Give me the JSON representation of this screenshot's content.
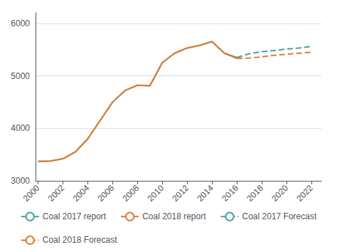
{
  "chart_data": {
    "type": "line",
    "series": [
      {
        "name": "Coal 2017 report",
        "color": "#4a9fa0",
        "line_style": "solid",
        "x": [
          2000,
          2001,
          2002,
          2003,
          2004,
          2005,
          2006,
          2007,
          2008,
          2009,
          2010,
          2011,
          2012,
          2013,
          2014,
          2015,
          2016
        ],
        "values": [
          3370,
          3375,
          3420,
          3550,
          3800,
          4150,
          4500,
          4720,
          4820,
          4810,
          5250,
          5430,
          5530,
          5580,
          5650,
          5430,
          5350
        ]
      },
      {
        "name": "Coal 2018 report",
        "color": "#e07a2f",
        "line_style": "solid",
        "x": [
          2000,
          2001,
          2002,
          2003,
          2004,
          2005,
          2006,
          2007,
          2008,
          2009,
          2010,
          2011,
          2012,
          2013,
          2014,
          2015,
          2016
        ],
        "values": [
          3370,
          3375,
          3420,
          3550,
          3800,
          4150,
          4500,
          4720,
          4820,
          4810,
          5250,
          5430,
          5530,
          5580,
          5650,
          5430,
          5330
        ]
      },
      {
        "name": "Coal 2017 Forecast",
        "color": "#4a9fa0",
        "line_style": "dashed",
        "x": [
          2016,
          2017,
          2018,
          2019,
          2020,
          2021,
          2022
        ],
        "values": [
          5350,
          5420,
          5460,
          5480,
          5510,
          5530,
          5560
        ]
      },
      {
        "name": "Coal 2018 Forecast",
        "color": "#e07a2f",
        "line_style": "dashed",
        "x": [
          2016,
          2017,
          2018,
          2019,
          2020,
          2021,
          2022
        ],
        "values": [
          5330,
          5340,
          5360,
          5390,
          5410,
          5430,
          5450
        ]
      }
    ],
    "xlim": [
      1999.8,
      2022.8
    ],
    "xticks": [
      2000,
      2002,
      2004,
      2006,
      2008,
      2010,
      2012,
      2014,
      2016,
      2018,
      2020,
      2022
    ],
    "ylim": [
      3000,
      6200
    ],
    "yticks": [
      3000,
      4000,
      5000,
      6000
    ],
    "grid": true,
    "legend": "bottom"
  }
}
